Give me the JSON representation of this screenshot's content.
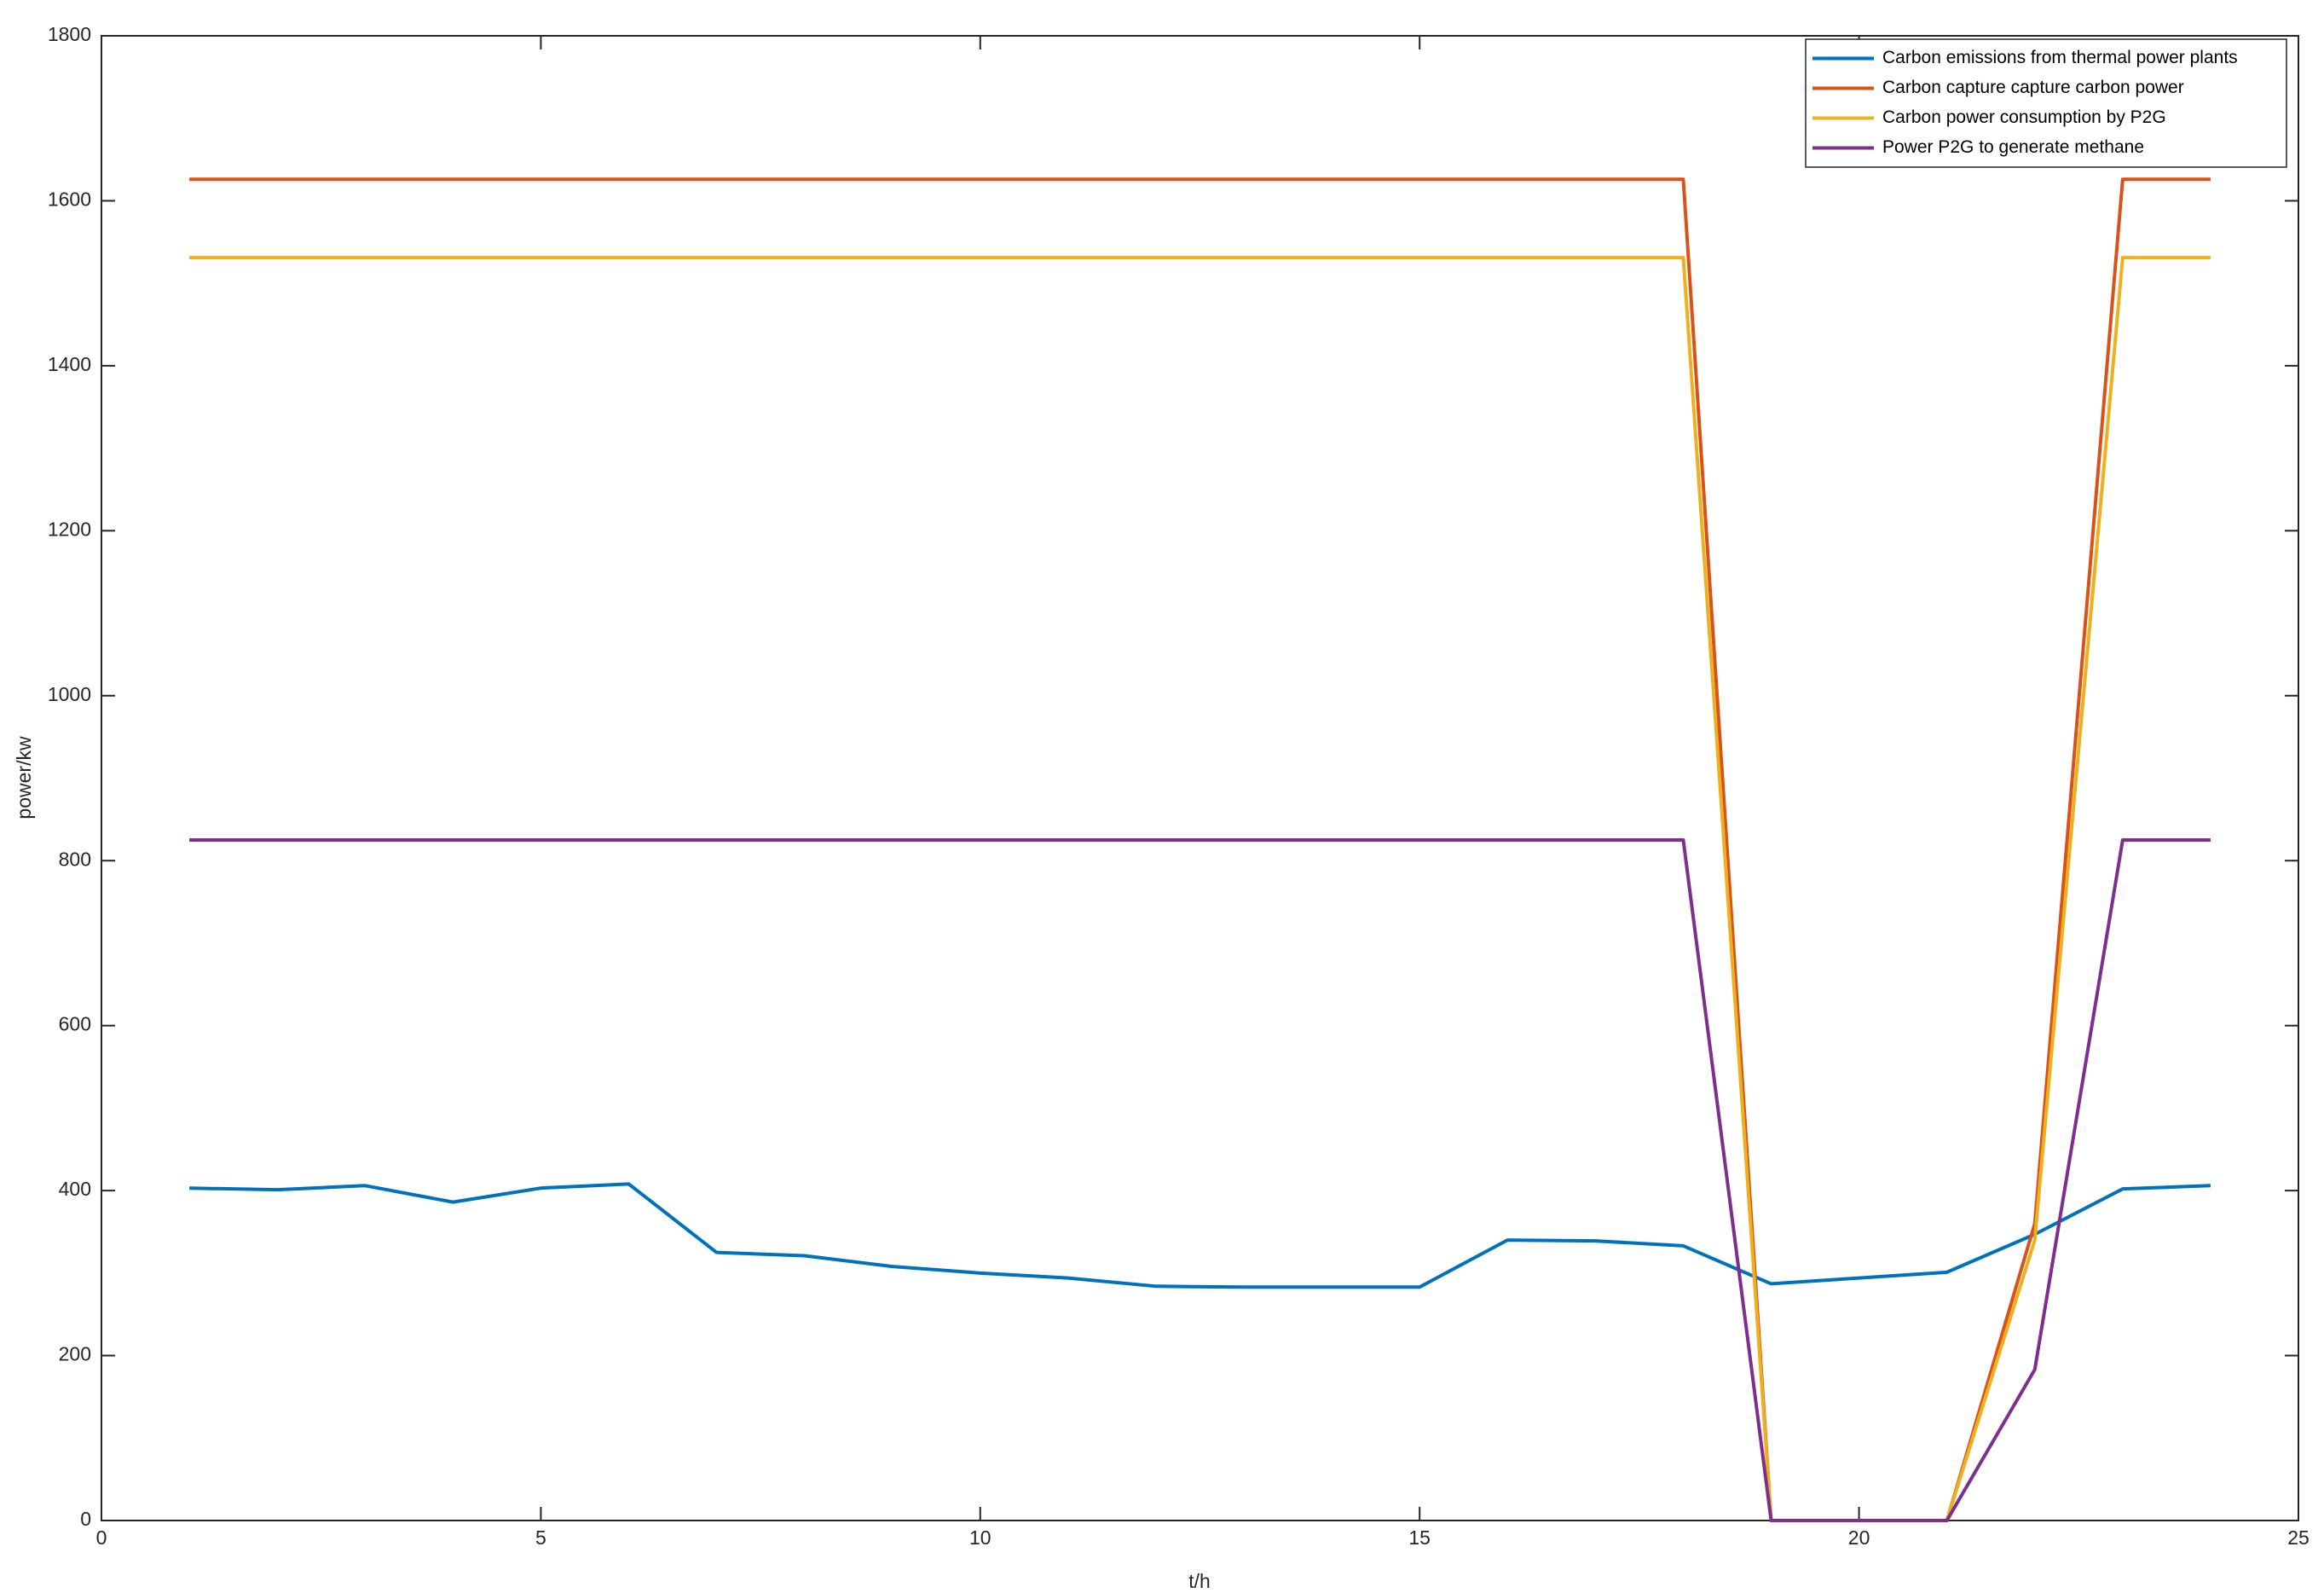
{
  "chart_data": {
    "type": "line",
    "x_label": "t/h",
    "y_label": "power/kw",
    "x": [
      1,
      2,
      3,
      4,
      5,
      6,
      7,
      8,
      9,
      10,
      11,
      12,
      13,
      14,
      15,
      16,
      17,
      18,
      19,
      20,
      21,
      22,
      23,
      24
    ],
    "series": [
      {
        "name": "Carbon emissions from thermal power plants",
        "color": "#0072BD",
        "values": [
          403,
          401,
          406,
          386,
          403,
          408,
          325,
          321,
          308,
          300,
          294,
          284,
          283,
          283,
          283,
          340,
          339,
          333,
          287,
          294,
          301,
          347,
          402,
          406
        ]
      },
      {
        "name": "Carbon capture capture carbon power",
        "color": "#D95319",
        "values": [
          1626,
          1626,
          1626,
          1626,
          1626,
          1626,
          1626,
          1626,
          1626,
          1626,
          1626,
          1626,
          1626,
          1626,
          1626,
          1626,
          1626,
          1626,
          0,
          0,
          0,
          360,
          1626,
          1626
        ]
      },
      {
        "name": "Carbon power consumption by P2G",
        "color": "#EDB120",
        "values": [
          1531,
          1531,
          1531,
          1531,
          1531,
          1531,
          1531,
          1531,
          1531,
          1531,
          1531,
          1531,
          1531,
          1531,
          1531,
          1531,
          1531,
          1531,
          0,
          0,
          0,
          340,
          1531,
          1531
        ]
      },
      {
        "name": "Power P2G to generate methane",
        "color": "#7E2F8E",
        "values": [
          825,
          825,
          825,
          825,
          825,
          825,
          825,
          825,
          825,
          825,
          825,
          825,
          825,
          825,
          825,
          825,
          825,
          825,
          0,
          0,
          0,
          183,
          825,
          825
        ]
      }
    ],
    "xlim": [
      0,
      25
    ],
    "xticks": [
      0,
      5,
      10,
      15,
      20,
      25
    ],
    "ylim": [
      0,
      1800
    ],
    "yticks": [
      0,
      200,
      400,
      600,
      800,
      1000,
      1200,
      1400,
      1600,
      1800
    ],
    "grid": false,
    "legend": "upper right"
  }
}
